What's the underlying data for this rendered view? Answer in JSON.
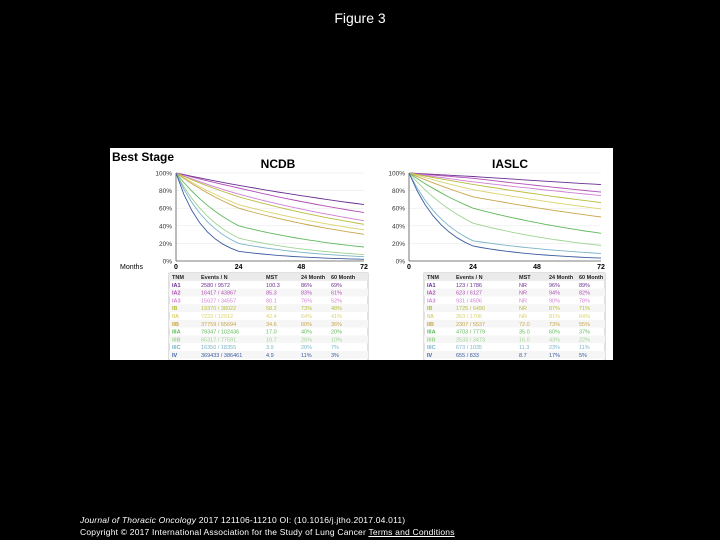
{
  "page_title": "Figure 3",
  "figure": {
    "heading": "Best Stage",
    "panels": [
      {
        "name": "NCDB",
        "y_ticks": [
          "100%",
          "80%",
          "60%",
          "40%",
          "20%",
          "0%"
        ],
        "x_label": "Months",
        "x_ticks": [
          "0",
          "24",
          "48",
          "72"
        ],
        "table_header": [
          "TNM",
          "Events / N",
          "MST",
          "24 Month",
          "60 Month"
        ],
        "rows": [
          [
            "IA1",
            "2580 / 9572",
            "100.3",
            "86%",
            "69%"
          ],
          [
            "IA2",
            "16417 / 43867",
            "85.3",
            "83%",
            "61%"
          ],
          [
            "IA3",
            "15627 / 34557",
            "80.1",
            "76%",
            "52%"
          ],
          [
            "IB",
            "19370 / 38022",
            "58.2",
            "73%",
            "48%"
          ],
          [
            "IIA",
            "7223 / 12912",
            "42.4",
            "64%",
            "41%"
          ],
          [
            "IIB",
            "37759 / 65694",
            "34.6",
            "60%",
            "36%"
          ],
          [
            "IIIA",
            "79347 / 102436",
            "17.0",
            "40%",
            "20%"
          ],
          [
            "IIIB",
            "65317 / 77591",
            "10.7",
            "26%",
            "10%"
          ],
          [
            "IIIC",
            "16350 / 18355",
            "3.9",
            "20%",
            "7%"
          ],
          [
            "IV",
            "369433 / 386461",
            "4.9",
            "11%",
            "3%"
          ]
        ]
      },
      {
        "name": "IASLC",
        "y_ticks": [
          "100%",
          "80%",
          "60%",
          "40%",
          "20%",
          "0%"
        ],
        "x_ticks": [
          "0",
          "24",
          "48",
          "72"
        ],
        "table_header": [
          "TNM",
          "Events / N",
          "MST",
          "24 Month",
          "60 Month"
        ],
        "rows": [
          [
            "IA1",
            "123 / 1786",
            "NR",
            "96%",
            "89%"
          ],
          [
            "IA2",
            "623 / 6127",
            "NR",
            "94%",
            "82%"
          ],
          [
            "IA3",
            "931 / 4506",
            "NR",
            "90%",
            "78%"
          ],
          [
            "IB",
            "1725 / 6490",
            "NR",
            "87%",
            "71%"
          ],
          [
            "IIA",
            "353 / 1706",
            "NR",
            "81%",
            "64%"
          ],
          [
            "IIB",
            "2307 / 5537",
            "72.0",
            "73%",
            "55%"
          ],
          [
            "IIIA",
            "4703 / 7779",
            "35.0",
            "60%",
            "37%"
          ],
          [
            "IIIB",
            "2533 / 3473",
            "16.0",
            "43%",
            "22%"
          ],
          [
            "IIIC",
            "673 / 1035",
            "11.3",
            "23%",
            "11%"
          ],
          [
            "IV",
            "655 / 833",
            "8.7",
            "17%",
            "5%"
          ]
        ]
      }
    ],
    "curve_colors": [
      "#6a2c91",
      "#b04fb6",
      "#d27fd4",
      "#b7bd3c",
      "#d9d26e",
      "#c9a64a",
      "#5fb85c",
      "#9fd393",
      "#7ab4c9",
      "#3b5ba0"
    ]
  },
  "footer": {
    "journal": "Journal of Thoracic Oncology",
    "citation": " 2017 121106-11210 OI: (10.1016/j.jtho.2017.04.011)",
    "copyright": "Copyright © 2017 International Association for the Study of Lung Cancer ",
    "link_text": "Terms and Conditions"
  }
}
